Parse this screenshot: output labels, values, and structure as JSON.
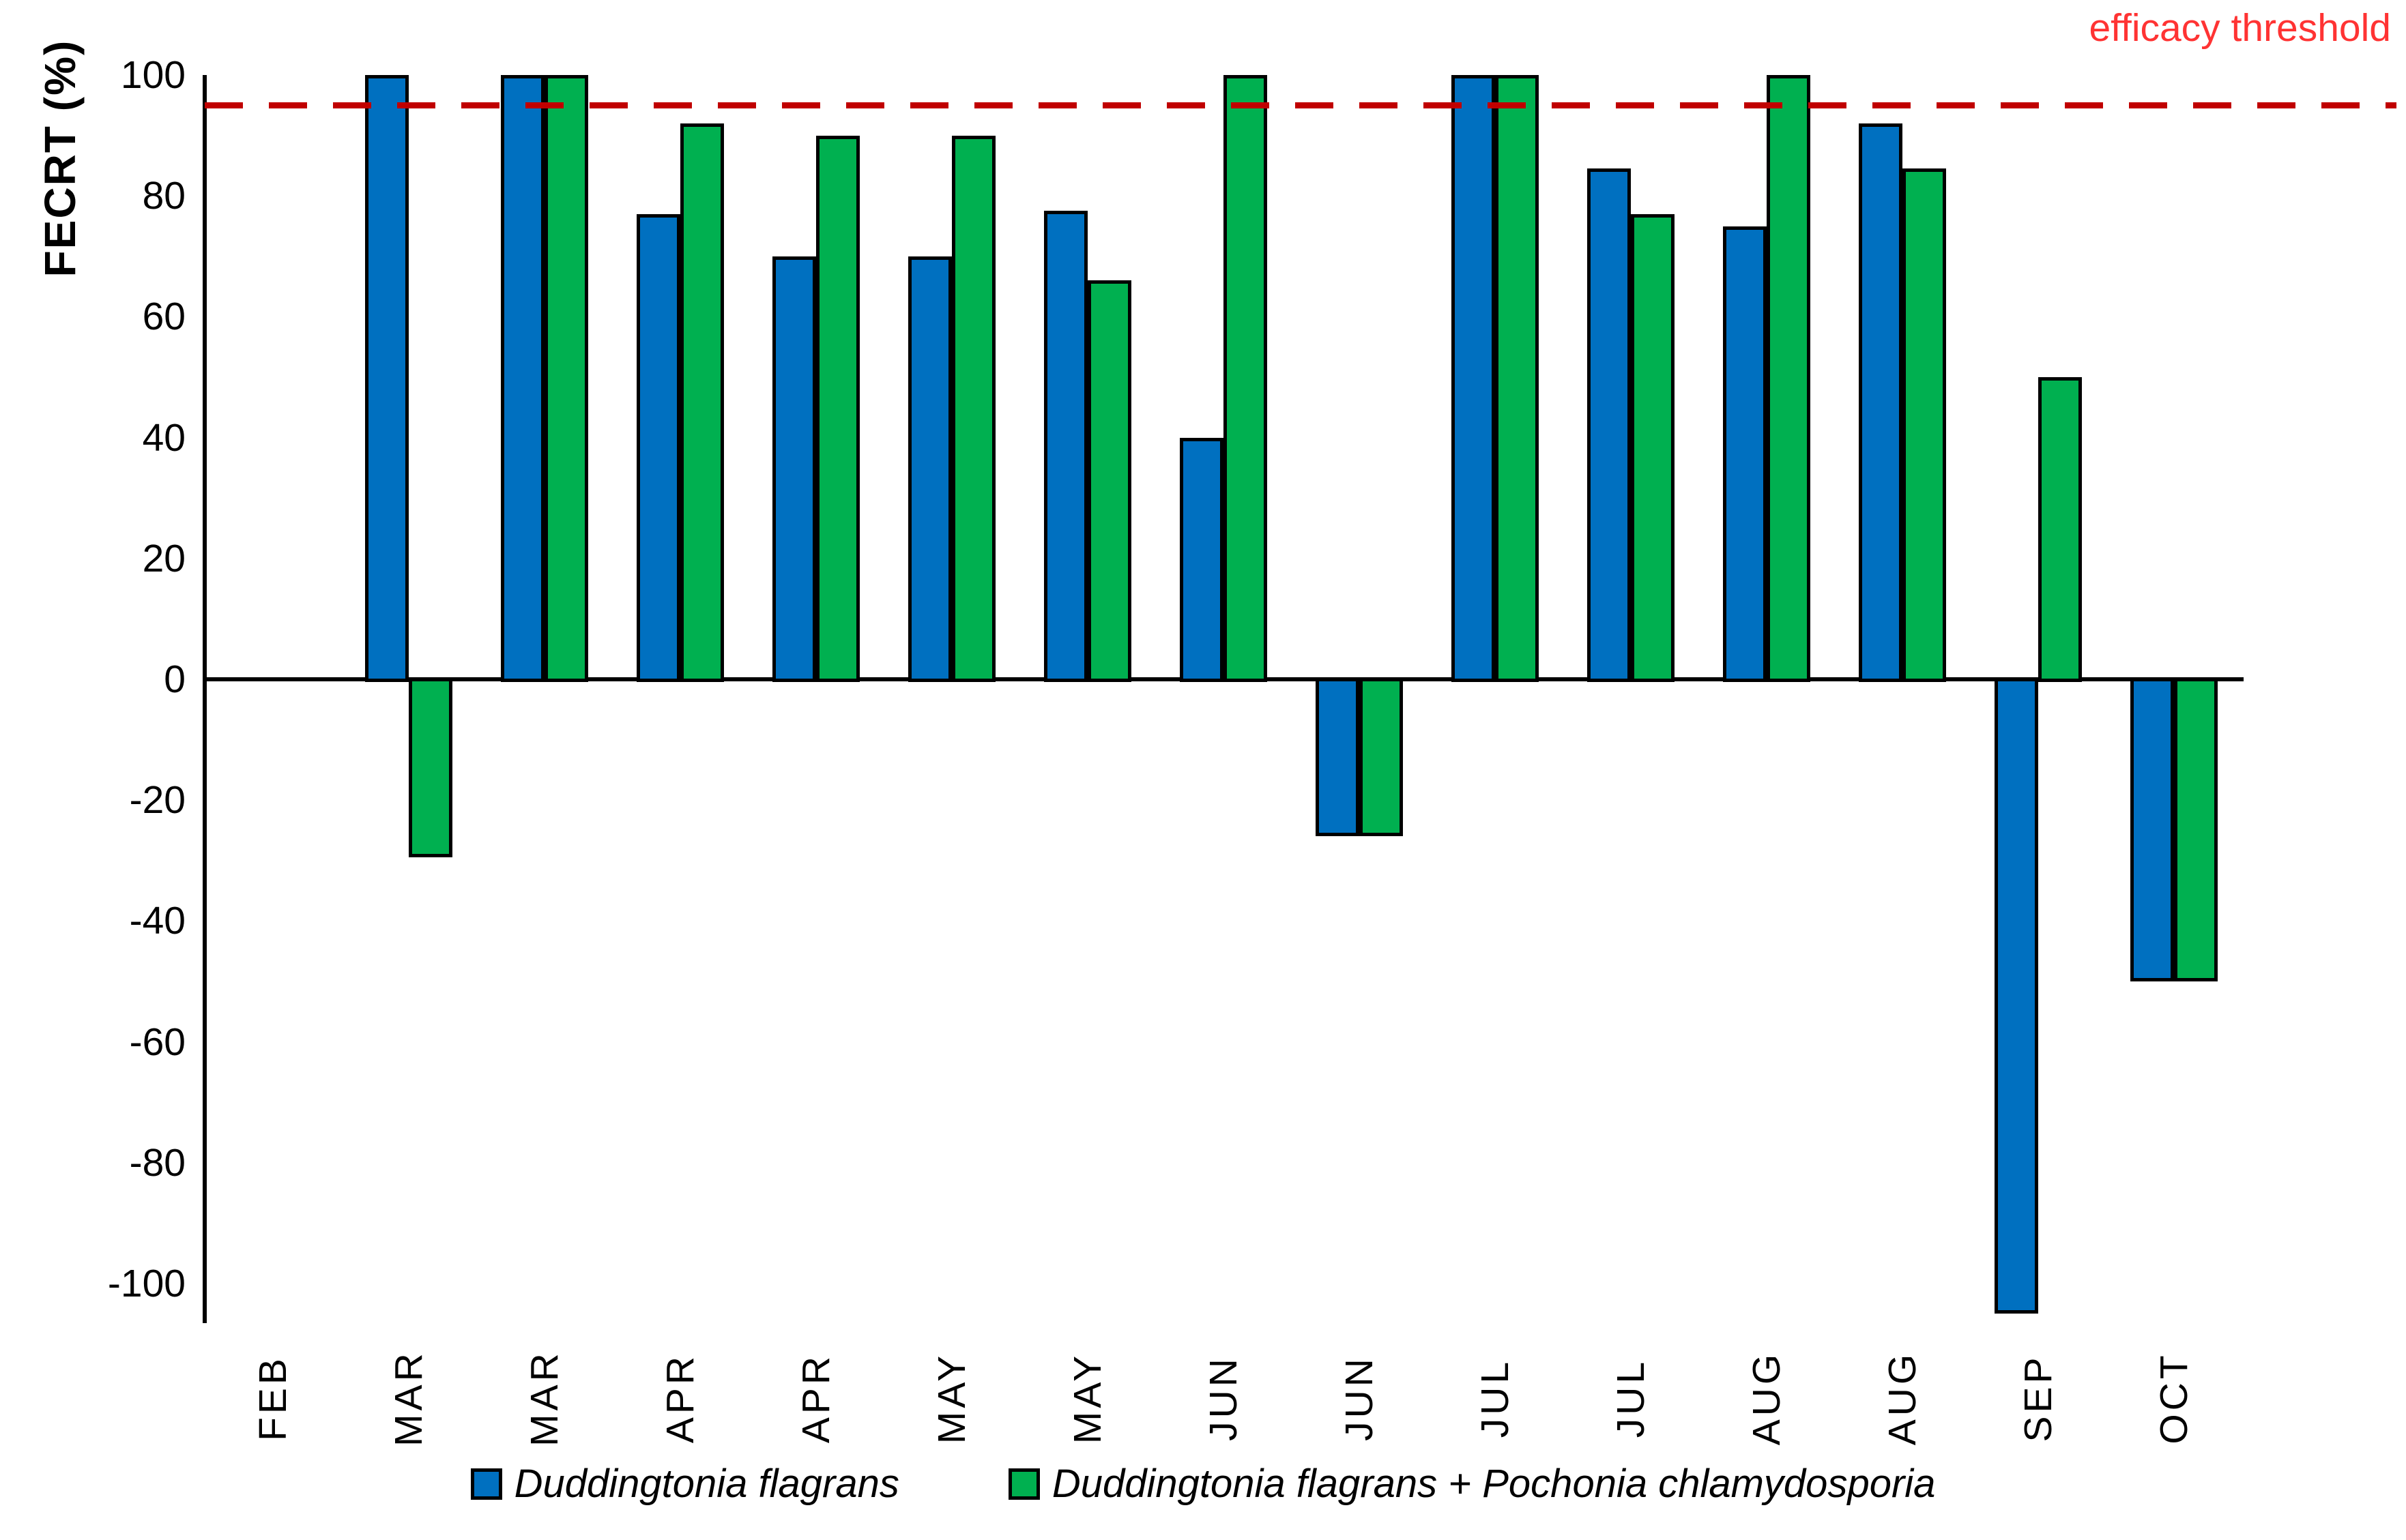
{
  "chart_data": {
    "type": "bar",
    "title": "",
    "xlabel": "",
    "ylabel": "FECRT (%)",
    "categories": [
      "FEB",
      "MAR",
      "MAR",
      "APR",
      "APR",
      "MAY",
      "MAY",
      "JUN",
      "JUN",
      "JUL",
      "JUL",
      "AUG",
      "AUG",
      "SEP",
      "OCT"
    ],
    "series": [
      {
        "name": "Duddingtonia flagrans",
        "color": "#0070C0",
        "values": [
          null,
          100,
          100,
          77,
          70,
          70,
          77.5,
          40,
          -26,
          100,
          84.5,
          75,
          92,
          -105,
          -50
        ]
      },
      {
        "name": "Duddingtonia flagrans + Pochonia chlamydosporia",
        "color": "#00B050",
        "values": [
          null,
          -29.5,
          100,
          92,
          90,
          90,
          66,
          100,
          -26,
          100,
          77,
          100,
          84.5,
          50,
          -50
        ]
      }
    ],
    "yticks": [
      100,
      80,
      60,
      40,
      20,
      0,
      -20,
      -40,
      -60,
      -80,
      -100
    ],
    "ylim": [
      -105,
      100
    ],
    "grid": false,
    "legend_position": "bottom",
    "bar_outline_color": "#000000",
    "threshold": {
      "label": "efficacy threshold",
      "value": 95,
      "line_color": "#C00000",
      "label_color": "#FF3333",
      "style": "dashed"
    }
  }
}
